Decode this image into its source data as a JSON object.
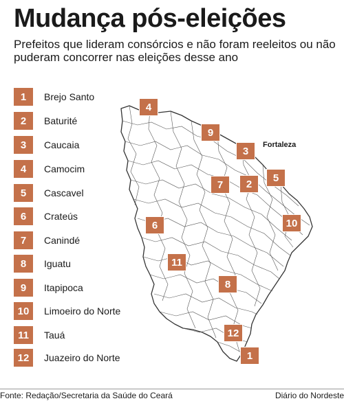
{
  "title": "Mudança pós-eleições",
  "subtitle": "Prefeitos que lideram consórcios e não foram reeleitos ou não puderam concorrer nas eleições desse ano",
  "legend": [
    {
      "number": "1",
      "city": "Brejo Santo"
    },
    {
      "number": "2",
      "city": "Baturité"
    },
    {
      "number": "3",
      "city": "Caucaia"
    },
    {
      "number": "4",
      "city": "Camocim"
    },
    {
      "number": "5",
      "city": "Cascavel"
    },
    {
      "number": "6",
      "city": "Crateús"
    },
    {
      "number": "7",
      "city": "Canindé"
    },
    {
      "number": "8",
      "city": "Iguatu"
    },
    {
      "number": "9",
      "city": "Itapipoca"
    },
    {
      "number": "10",
      "city": "Limoeiro do Norte"
    },
    {
      "number": "11",
      "city": "Tauá"
    },
    {
      "number": "12",
      "city": "Juazeiro do Norte"
    }
  ],
  "map": {
    "capital_label": "Fortaleza",
    "markers": [
      "1",
      "2",
      "3",
      "4",
      "5",
      "6",
      "7",
      "8",
      "9",
      "10",
      "11",
      "12"
    ]
  },
  "footer": {
    "source": "Fonte: Redação/Secretaria da Saúde do Ceará",
    "credit": "Diário do Nordeste"
  },
  "colors": {
    "badge": "#c4714a",
    "map_outline": "#333333",
    "background": "#ffffff"
  }
}
